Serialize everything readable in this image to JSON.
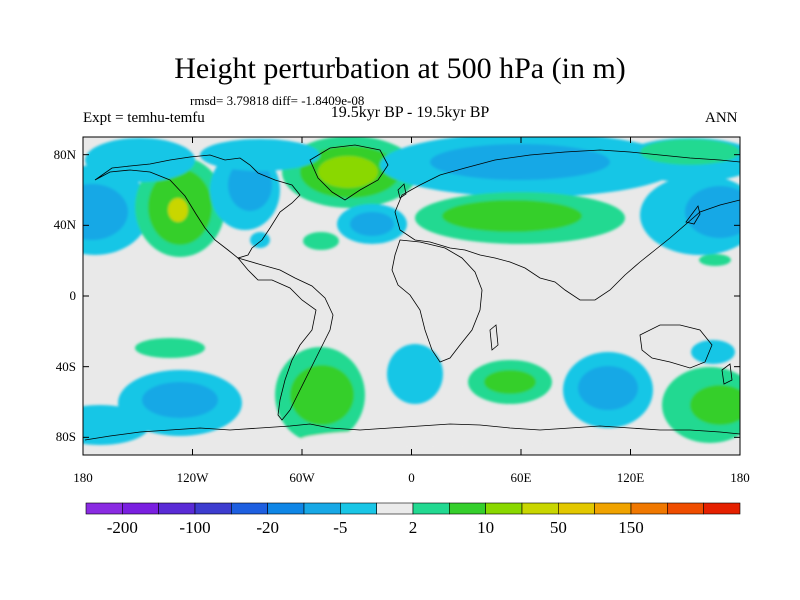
{
  "title": "Height perturbation at 500 hPa (in m)",
  "stats": "rmsd= 3.79818 diff= -1.8409e-08",
  "experiment": "Expt = temhu-temfu",
  "period": "19.5kyr BP - 19.5kyr BP",
  "season": "ANN",
  "map": {
    "lat_ticks": [
      {
        "label": "80N",
        "lat": 80
      },
      {
        "label": "40N",
        "lat": 40
      },
      {
        "label": "0",
        "lat": 0
      },
      {
        "label": "40S",
        "lat": -40
      },
      {
        "label": "80S",
        "lat": -80
      }
    ],
    "lon_ticks": [
      {
        "label": "180",
        "lon": -180
      },
      {
        "label": "120W",
        "lon": -120
      },
      {
        "label": "60W",
        "lon": -60
      },
      {
        "label": "0",
        "lon": 0
      },
      {
        "label": "60E",
        "lon": 60
      },
      {
        "label": "120E",
        "lon": 120
      },
      {
        "label": "180",
        "lon": 180
      }
    ],
    "background_color": "#e9e9e9",
    "coastline_color": "#000000"
  },
  "colorbar": {
    "colors": [
      "#8a2be2",
      "#7a1fe0",
      "#5a2bd6",
      "#3d3ccf",
      "#1e5fe0",
      "#0f86e6",
      "#17a8e6",
      "#19c6e6",
      "#ebebeb",
      "#22d991",
      "#35cf2c",
      "#8ad800",
      "#c9d600",
      "#e3c800",
      "#f0a300",
      "#f07800",
      "#ef4d00",
      "#e52000"
    ],
    "labels": [
      {
        "text": "-200",
        "boundary": 1
      },
      {
        "text": "-100",
        "boundary": 3
      },
      {
        "text": "-20",
        "boundary": 5
      },
      {
        "text": "-5",
        "boundary": 7
      },
      {
        "text": "2",
        "boundary": 9
      },
      {
        "text": "10",
        "boundary": 11
      },
      {
        "text": "50",
        "boundary": 13
      },
      {
        "text": "150",
        "boundary": 15
      }
    ]
  }
}
